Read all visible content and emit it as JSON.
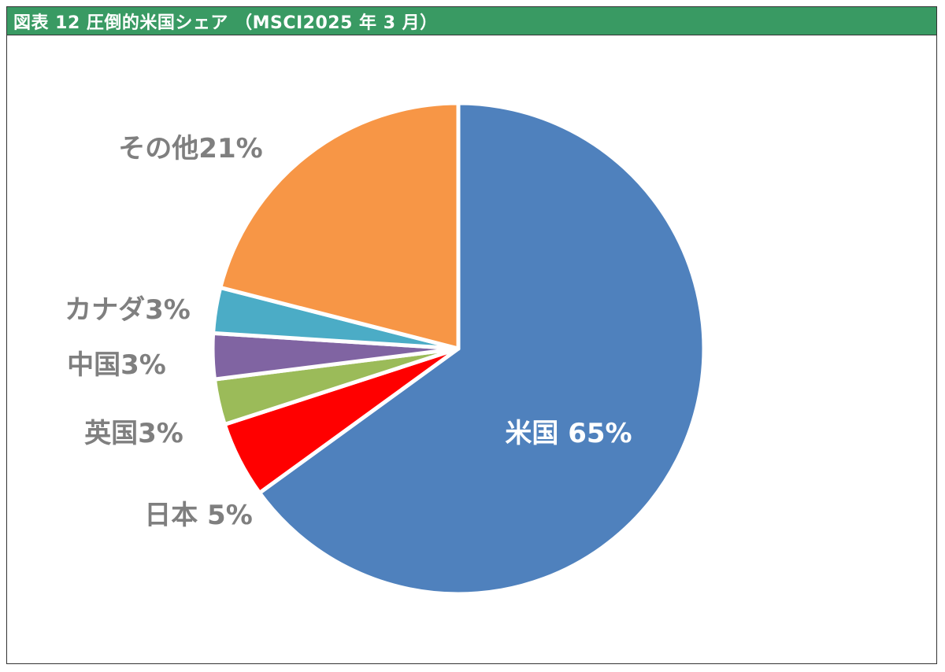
{
  "header": {
    "title": "図表 12 圧倒的米国シェア （MSCI2025 年 3 月）"
  },
  "colors": {
    "title_bar": "#399a63",
    "label_gray": "#7f7f7f",
    "label_inside": "#ffffff"
  },
  "chart_data": {
    "type": "pie",
    "title": "図表 12 圧倒的米国シェア （MSCI2025 年 3 月）",
    "start": "12 o'clock, clockwise",
    "slices": [
      {
        "name": "米国",
        "value": 65,
        "label": "米国 65%",
        "color": "#4f81bd"
      },
      {
        "name": "日本",
        "value": 5,
        "label": "日本 5%",
        "color": "#ff0000"
      },
      {
        "name": "英国",
        "value": 3,
        "label": "英国3%",
        "color": "#9bbb59"
      },
      {
        "name": "中国",
        "value": 3,
        "label": "中国3%",
        "color": "#8064a2"
      },
      {
        "name": "カナダ",
        "value": 3,
        "label": "カナダ3%",
        "color": "#4bacc6"
      },
      {
        "name": "その他",
        "value": 21,
        "label": "その他21%",
        "color": "#f79646"
      }
    ]
  }
}
